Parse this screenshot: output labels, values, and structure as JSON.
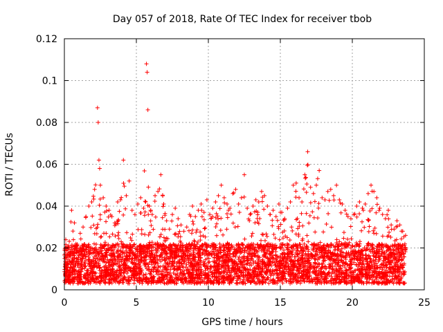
{
  "chart_data": {
    "type": "scatter",
    "title": "Day 057 of 2018, Rate Of TEC Index for receiver tbob",
    "xlabel": "GPS time / hours",
    "ylabel": "ROTI / TECUs",
    "xlim": [
      0,
      25
    ],
    "ylim": [
      0,
      0.12
    ],
    "x_ticks": [
      0,
      5,
      10,
      15,
      20,
      25
    ],
    "x_tick_labels": [
      "0",
      "5",
      "10",
      "15",
      "20",
      "25"
    ],
    "y_ticks": [
      0,
      0.02,
      0.04,
      0.06,
      0.08,
      0.1,
      0.12
    ],
    "y_tick_labels": [
      "0",
      "0.02",
      "0.04",
      "0.06",
      "0.08",
      "0.1",
      "0.12"
    ],
    "grid": true,
    "marker": "+",
    "color": "#ff0000",
    "series": [
      {
        "name": "ROTI",
        "x": [
          0.1,
          0.3,
          0.5,
          0.7,
          0.9,
          1.1,
          1.3,
          1.5,
          1.7,
          1.9,
          2.1,
          2.3,
          2.35,
          2.4,
          2.45,
          2.5,
          2.7,
          2.9,
          3.1,
          3.3,
          3.5,
          3.7,
          3.9,
          4.1,
          4.3,
          4.5,
          4.7,
          4.9,
          5.1,
          5.3,
          5.5,
          5.7,
          5.75,
          5.8,
          5.9,
          6.1,
          6.3,
          6.5,
          6.7,
          6.9,
          7.1,
          7.3,
          7.5,
          7.7,
          7.9,
          8.1,
          8.3,
          8.5,
          8.7,
          8.9,
          9.1,
          9.3,
          9.5,
          9.7,
          9.9,
          10.1,
          10.3,
          10.5,
          10.7,
          10.9,
          11.1,
          11.3,
          11.5,
          11.7,
          11.9,
          12.1,
          12.3,
          12.5,
          12.7,
          12.9,
          13.1,
          13.3,
          13.5,
          13.7,
          13.9,
          14.1,
          14.3,
          14.5,
          14.7,
          14.9,
          15.1,
          15.3,
          15.5,
          15.7,
          15.9,
          16.1,
          16.3,
          16.5,
          16.7,
          16.9,
          17.1,
          17.3,
          17.5,
          17.7,
          17.9,
          18.1,
          18.3,
          18.5,
          18.7,
          18.9,
          19.1,
          19.3,
          19.5,
          19.7,
          19.9,
          20.1,
          20.3,
          20.5,
          20.7,
          20.9,
          21.1,
          21.3,
          21.5,
          21.7,
          21.9,
          22.1,
          22.3,
          22.5,
          22.7,
          22.9,
          23.1,
          23.3,
          23.5,
          23.7
        ],
        "y": [
          0.024,
          0.021,
          0.038,
          0.032,
          0.018,
          0.027,
          0.03,
          0.035,
          0.04,
          0.042,
          0.048,
          0.087,
          0.08,
          0.062,
          0.058,
          0.05,
          0.044,
          0.04,
          0.038,
          0.035,
          0.032,
          0.042,
          0.043,
          0.062,
          0.045,
          0.052,
          0.038,
          0.036,
          0.041,
          0.044,
          0.039,
          0.108,
          0.104,
          0.086,
          0.04,
          0.036,
          0.045,
          0.047,
          0.055,
          0.041,
          0.033,
          0.029,
          0.036,
          0.039,
          0.034,
          0.031,
          0.028,
          0.03,
          0.036,
          0.04,
          0.035,
          0.038,
          0.041,
          0.037,
          0.043,
          0.036,
          0.039,
          0.042,
          0.045,
          0.05,
          0.044,
          0.041,
          0.039,
          0.046,
          0.048,
          0.041,
          0.044,
          0.055,
          0.039,
          0.036,
          0.04,
          0.043,
          0.042,
          0.047,
          0.045,
          0.04,
          0.036,
          0.038,
          0.035,
          0.041,
          0.037,
          0.034,
          0.039,
          0.042,
          0.05,
          0.051,
          0.044,
          0.042,
          0.055,
          0.066,
          0.049,
          0.046,
          0.05,
          0.057,
          0.044,
          0.043,
          0.047,
          0.048,
          0.045,
          0.05,
          0.043,
          0.041,
          0.038,
          0.035,
          0.034,
          0.036,
          0.04,
          0.042,
          0.039,
          0.041,
          0.046,
          0.05,
          0.047,
          0.044,
          0.039,
          0.036,
          0.034,
          0.038,
          0.031,
          0.029,
          0.033,
          0.031,
          0.028,
          0.026
        ]
      }
    ]
  }
}
